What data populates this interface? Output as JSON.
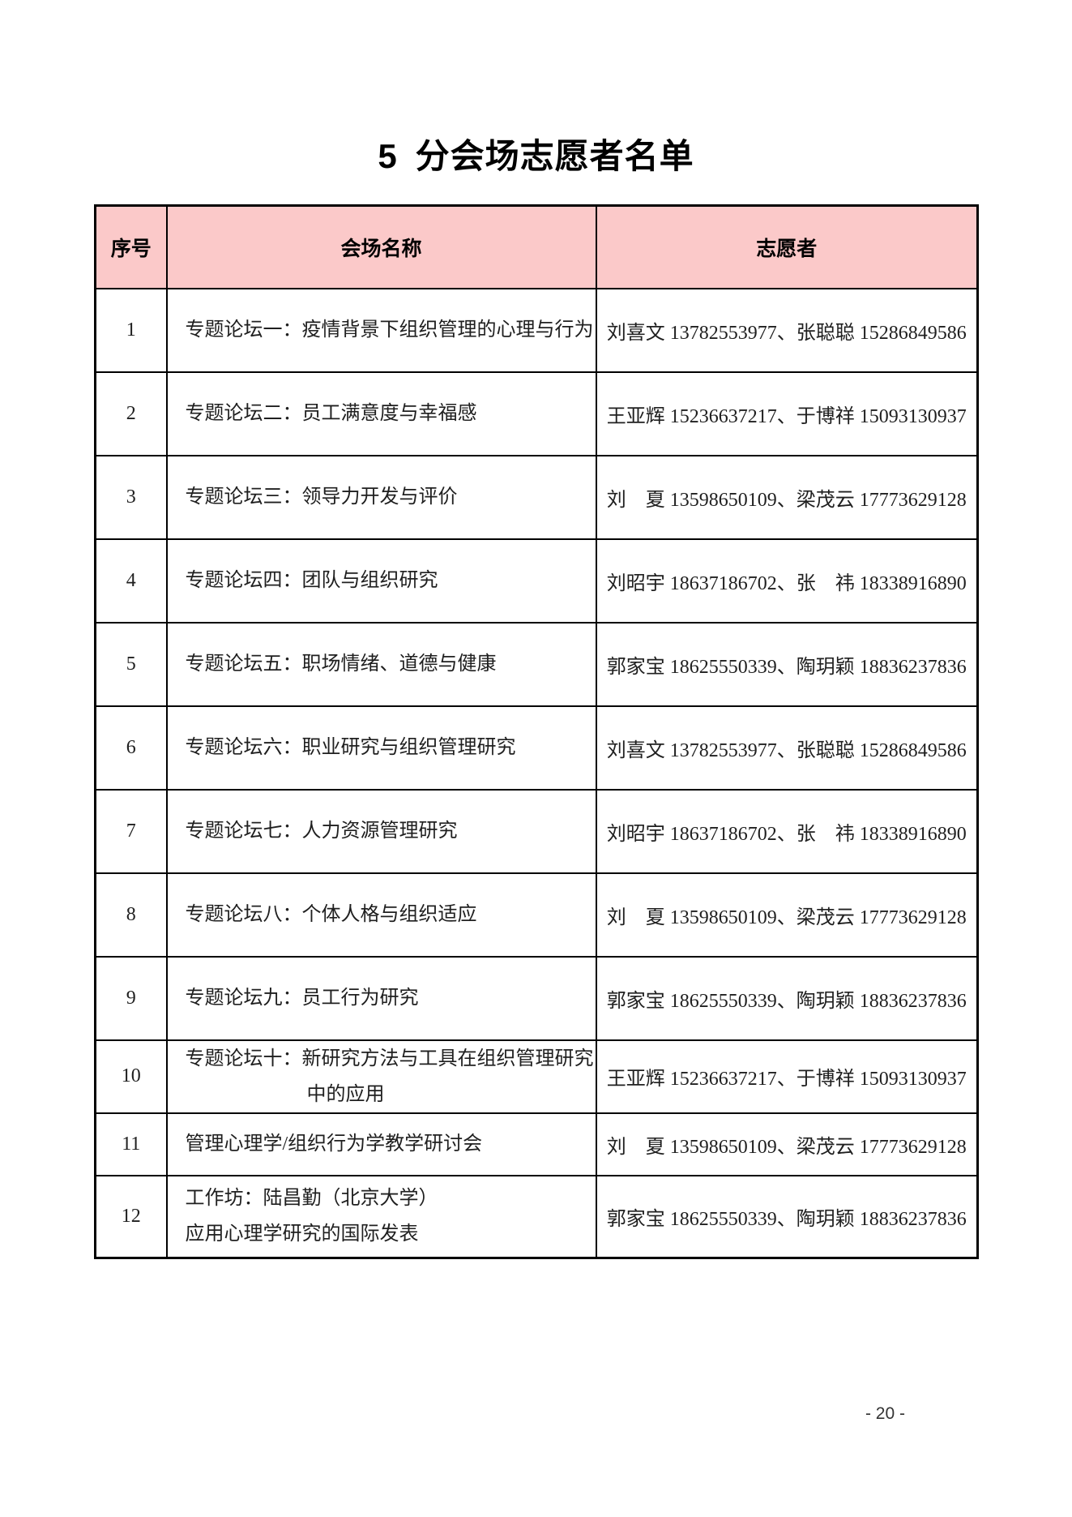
{
  "page": {
    "title_number": "5",
    "title_text": "分会场志愿者名单",
    "page_number": "- 20 -"
  },
  "table": {
    "headers": {
      "no": "序号",
      "venue": "会场名称",
      "volunteers": "志愿者"
    },
    "colors": {
      "header_bg": "#fbc9c9",
      "border": "#000000"
    },
    "rows": [
      {
        "no": "1",
        "venue_lines": [
          "专题论坛一：疫情背景下组织管理的心理与行为"
        ],
        "volunteers": "刘喜文 13782553977、张聪聪 15286849586"
      },
      {
        "no": "2",
        "venue_lines": [
          "专题论坛二：员工满意度与幸福感"
        ],
        "volunteers": "王亚辉 15236637217、于博祥 15093130937"
      },
      {
        "no": "3",
        "venue_lines": [
          "专题论坛三：领导力开发与评价"
        ],
        "volunteers": "刘　夏 13598650109、梁茂云 17773629128"
      },
      {
        "no": "4",
        "venue_lines": [
          "专题论坛四：团队与组织研究"
        ],
        "volunteers": "刘昭宇 18637186702、张　祎 18338916890"
      },
      {
        "no": "5",
        "venue_lines": [
          "专题论坛五：职场情绪、道德与健康"
        ],
        "volunteers": "郭家宝 18625550339、陶玥颖 18836237836"
      },
      {
        "no": "6",
        "venue_lines": [
          "专题论坛六：职业研究与组织管理研究"
        ],
        "volunteers": "刘喜文 13782553977、张聪聪 15286849586"
      },
      {
        "no": "7",
        "venue_lines": [
          "专题论坛七：人力资源管理研究"
        ],
        "volunteers": "刘昭宇 18637186702、张　祎 18338916890"
      },
      {
        "no": "8",
        "venue_lines": [
          "专题论坛八：个体人格与组织适应"
        ],
        "volunteers": "刘　夏 13598650109、梁茂云 17773629128"
      },
      {
        "no": "9",
        "venue_lines": [
          "专题论坛九：员工行为研究"
        ],
        "volunteers": "郭家宝 18625550339、陶玥颖 18836237836"
      },
      {
        "no": "10",
        "venue_lines": [
          "专题论坛十：新研究方法与工具在组织管理研究",
          "中的应用"
        ],
        "volunteers": "王亚辉 15236637217、于博祥 15093130937"
      },
      {
        "no": "11",
        "venue_lines": [
          "管理心理学/组织行为学教学研讨会"
        ],
        "volunteers": "刘　夏 13598650109、梁茂云 17773629128"
      },
      {
        "no": "12",
        "venue_lines": [
          "工作坊：陆昌勤（北京大学）",
          "应用心理学研究的国际发表"
        ],
        "volunteers": "郭家宝 18625550339、陶玥颖 18836237836"
      }
    ]
  }
}
